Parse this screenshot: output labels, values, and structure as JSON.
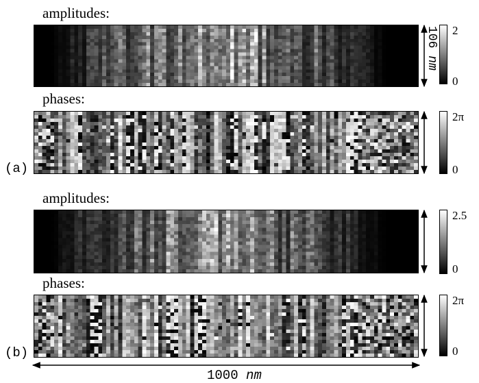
{
  "panels": {
    "a": {
      "tag": "(a)",
      "amplitudes": {
        "label": "amplitudes:",
        "colorbar_max": "2",
        "colorbar_min": "0"
      },
      "phases": {
        "label": "phases:",
        "colorbar_max": "2π",
        "colorbar_min": "0"
      }
    },
    "b": {
      "tag": "(b)",
      "amplitudes": {
        "label": "amplitudes:",
        "colorbar_max": "2.5",
        "colorbar_min": "0"
      },
      "phases": {
        "label": "phases:",
        "colorbar_max": "2π",
        "colorbar_min": "0"
      }
    }
  },
  "scale": {
    "vertical_value": "106",
    "vertical_unit": "nm",
    "horizontal_value": "1000",
    "horizontal_unit": "nm"
  },
  "colors": {
    "background": "#ffffff",
    "map_low": "#000000",
    "map_high": "#ffffff"
  }
}
